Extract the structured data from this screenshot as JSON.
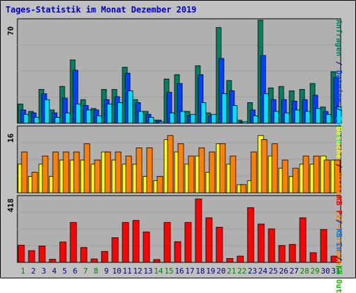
{
  "title": "Tages-Statistik im Monat Dezember 2019",
  "colors": {
    "background": "#c0c0c0",
    "plot": "#b0b0b0",
    "grid": "#a0a0a0",
    "title": "#0000c0",
    "anfragen": "#008060",
    "dateien": "#0040ff",
    "seiten": "#00e0ff",
    "besuche": "#ffff00",
    "rechner": "#ff8000",
    "kbf": "#ff0000",
    "kbin": "#0080ff",
    "kbout": "#00c000",
    "weekday": "#000080",
    "weekend": "#008000"
  },
  "chart_data": [
    {
      "type": "bar",
      "panel": "top",
      "ymax_label": "70",
      "ylim": [
        0,
        70
      ],
      "categories": [
        "1",
        "2",
        "3",
        "4",
        "5",
        "6",
        "7",
        "8",
        "9",
        "10",
        "11",
        "12",
        "13",
        "14",
        "15",
        "16",
        "17",
        "18",
        "19",
        "20",
        "21",
        "22",
        "23",
        "24",
        "25",
        "26",
        "27",
        "28",
        "29",
        "30",
        "31"
      ],
      "weekend_days": [
        "1",
        "7",
        "8",
        "14",
        "15",
        "21",
        "22",
        "28",
        "29"
      ],
      "series": [
        {
          "name": "Anfragen",
          "color_key": "anfragen",
          "values": [
            13,
            8,
            23,
            9,
            25,
            43,
            16,
            10,
            23,
            23,
            38,
            16,
            8,
            2,
            30,
            33,
            8,
            39,
            7,
            65,
            29,
            2,
            14,
            70,
            24,
            25,
            22,
            23,
            27,
            11,
            35
          ]
        },
        {
          "name": "Dateien",
          "color_key": "dateien",
          "values": [
            9,
            7,
            20,
            7,
            17,
            36,
            12,
            9,
            16,
            18,
            34,
            14,
            6,
            2,
            21,
            27,
            5,
            33,
            5,
            44,
            22,
            1,
            9,
            46,
            16,
            16,
            15,
            16,
            19,
            8,
            31
          ]
        },
        {
          "name": "Seiten",
          "color_key": "seiten",
          "values": [
            6,
            4,
            16,
            4,
            7,
            13,
            9,
            5,
            13,
            14,
            22,
            8,
            4,
            1,
            7,
            8,
            6,
            14,
            6,
            20,
            12,
            1,
            5,
            20,
            8,
            7,
            9,
            8,
            10,
            6,
            11
          ]
        }
      ],
      "legend": [
        {
          "text": "Anfragen",
          "color_key": "anfragen"
        },
        {
          "text": " / ",
          "color_key": "weekday"
        },
        {
          "text": "Dateien",
          "color_key": "dateien"
        },
        {
          "text": " / ",
          "color_key": "weekday"
        },
        {
          "text": "Seiten",
          "color_key": "seiten"
        }
      ]
    },
    {
      "type": "bar",
      "panel": "middle",
      "ymax_label": "16",
      "ylim": [
        0,
        16
      ],
      "categories": [
        "1",
        "2",
        "3",
        "4",
        "5",
        "6",
        "7",
        "8",
        "9",
        "10",
        "11",
        "12",
        "13",
        "14",
        "15",
        "16",
        "17",
        "18",
        "19",
        "20",
        "21",
        "22",
        "23",
        "24",
        "25",
        "26",
        "27",
        "28",
        "29",
        "30",
        "31"
      ],
      "series": [
        {
          "name": "Besuche",
          "color_key": "besuche",
          "values": [
            7,
            4,
            7,
            4,
            8,
            8,
            8,
            7,
            10,
            8,
            7,
            7,
            4,
            3,
            13,
            10,
            7,
            9,
            5,
            12,
            7,
            2,
            3,
            14,
            9,
            6,
            4,
            7,
            7,
            9,
            8
          ]
        },
        {
          "name": "Rechner",
          "color_key": "rechner",
          "values": [
            10,
            5,
            9,
            10,
            10,
            10,
            12,
            8,
            10,
            10,
            9,
            11,
            11,
            4,
            14,
            12,
            9,
            11,
            10,
            12,
            9,
            2,
            10,
            13,
            12,
            8,
            6,
            9,
            9,
            8,
            8
          ]
        }
      ],
      "legend": [
        {
          "text": "Besuche",
          "color_key": "besuche"
        },
        {
          "text": " / ",
          "color_key": "weekday"
        },
        {
          "text": "Rechner (IP-Adressen)",
          "color_key": "rechner"
        }
      ]
    },
    {
      "type": "bar",
      "panel": "bottom",
      "ymax_label": "418",
      "ylim": [
        0,
        418
      ],
      "categories": [
        "1",
        "2",
        "3",
        "4",
        "5",
        "6",
        "7",
        "8",
        "9",
        "10",
        "11",
        "12",
        "13",
        "14",
        "15",
        "16",
        "17",
        "18",
        "19",
        "20",
        "21",
        "22",
        "23",
        "24",
        "25",
        "26",
        "27",
        "28",
        "29",
        "30",
        "31"
      ],
      "series": [
        {
          "name": "KB F",
          "color_key": "kbf",
          "values": [
            110,
            75,
            105,
            20,
            130,
            255,
            95,
            22,
            70,
            158,
            255,
            268,
            195,
            18,
            255,
            132,
            255,
            405,
            285,
            225,
            25,
            40,
            350,
            245,
            214,
            108,
            115,
            285,
            62,
            210,
            40
          ]
        }
      ],
      "legend": [
        {
          "text": "KB F",
          "color_key": "kbf"
        },
        {
          "text": " / ",
          "color_key": "weekday"
        },
        {
          "text": "KB In",
          "color_key": "kbin"
        },
        {
          "text": " / ",
          "color_key": "weekday"
        },
        {
          "text": "KB Out",
          "color_key": "kbout"
        }
      ]
    }
  ]
}
